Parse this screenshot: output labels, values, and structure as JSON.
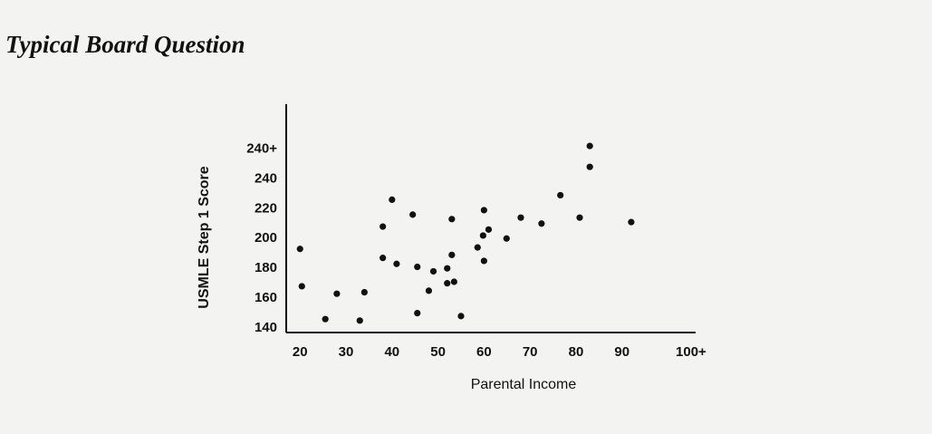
{
  "chart_data": {
    "type": "scatter",
    "title": "Typical Board Question",
    "xlabel": "Parental Income",
    "ylabel": "USMLE Step 1 Score",
    "color": "#111111",
    "x": [
      20,
      20.4,
      25.5,
      28,
      33,
      34,
      38,
      38,
      40,
      41,
      44.5,
      45.5,
      45.5,
      48,
      49,
      52,
      52,
      53,
      53,
      53.5,
      55,
      58.6,
      59.8,
      60,
      60,
      61,
      64.9,
      68,
      72.5,
      76.6,
      80.8,
      83,
      83,
      92
    ],
    "y": [
      193,
      168,
      146,
      163,
      145,
      164,
      208,
      187,
      226,
      183,
      216,
      181,
      150,
      165,
      178,
      180,
      170,
      213,
      189,
      171,
      148,
      194,
      202,
      185,
      219,
      206,
      200,
      214,
      210,
      229,
      214,
      248,
      262,
      211
    ],
    "xlim": [
      17,
      106
    ],
    "ylim": [
      137,
      290
    ],
    "xticks": [
      20,
      30,
      40,
      50,
      60,
      70,
      80,
      90,
      {
        "value": 105,
        "label": "100+"
      }
    ],
    "yticks": [
      140,
      160,
      180,
      200,
      220,
      240,
      {
        "value": 260,
        "label": "240+"
      }
    ]
  }
}
